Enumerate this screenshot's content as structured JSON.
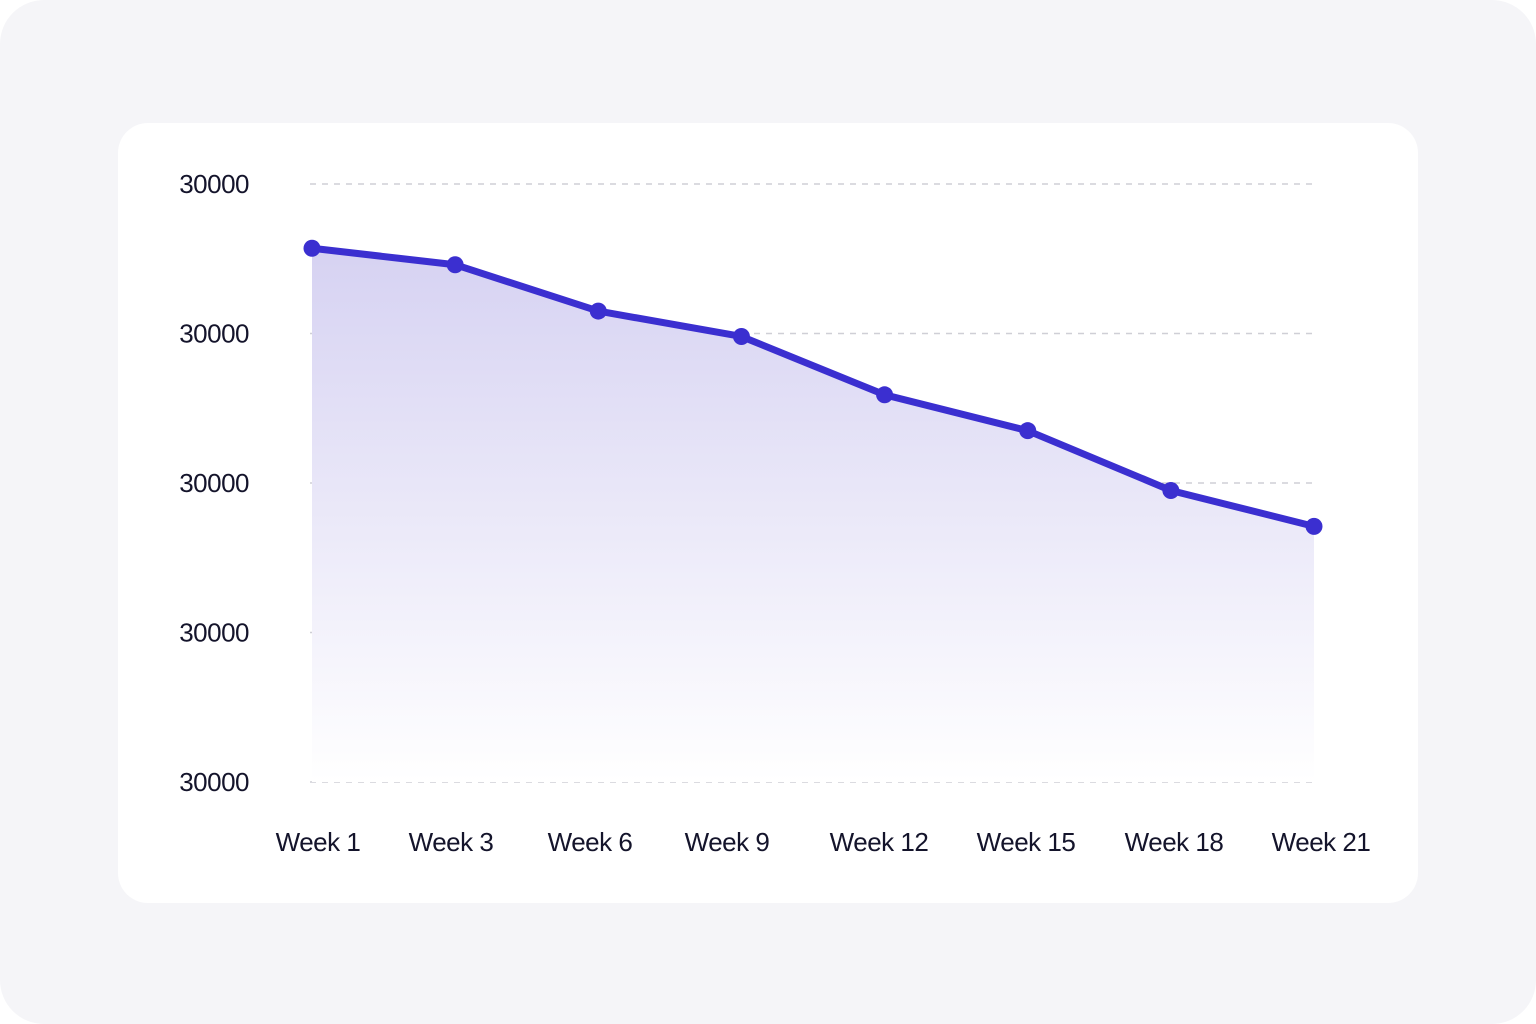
{
  "chart_data": {
    "type": "area",
    "categories": [
      "Week 1",
      "Week 3",
      "Week 6",
      "Week 9",
      "Week 12",
      "Week 15",
      "Week 18",
      "Week 21"
    ],
    "y_tick_labels": [
      "30000",
      "30000",
      "30000",
      "30000",
      "30000"
    ],
    "series": [
      {
        "values": [
          3.57,
          3.46,
          3.15,
          2.98,
          2.59,
          2.35,
          1.95,
          1.71
        ]
      }
    ],
    "ylim": [
      0,
      4
    ],
    "grid": true,
    "legend": "none",
    "colors": {
      "line": "#3b2fd0",
      "fill_top": "#d6d2f2",
      "grid": "#cfcfd6",
      "text": "#14142b"
    }
  }
}
